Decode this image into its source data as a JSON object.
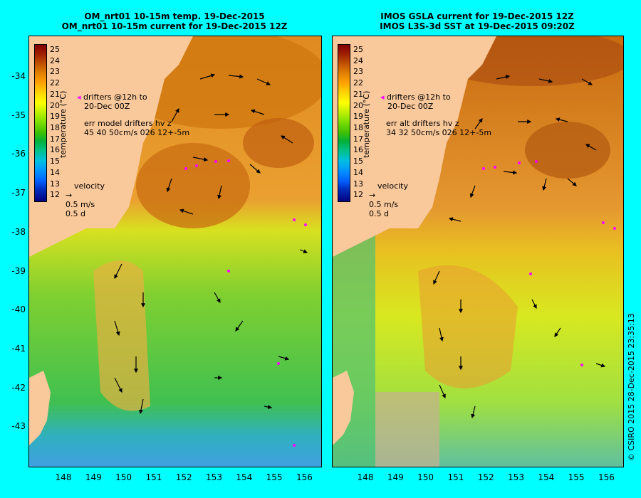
{
  "left_panel": {
    "title_line1": "OM_nrt01 10-15m temp. 19-Dec-2015",
    "title_line2": "OM_nrt01 10-15m current for 19-Dec-2015 12Z",
    "legend": {
      "drifters_line1": "drifters @12h to",
      "drifters_line2": "20-Dec 00Z",
      "err_line1": "err model drifters hv z",
      "err_line2": "45 40 50cm/s 026 12+-5m",
      "velocity_label": "velocity",
      "velocity_scale": "0.5 m/s",
      "velocity_time": "0.5 d"
    }
  },
  "right_panel": {
    "title_line1": "IMOS GSLA current for 19-Dec-2015 12Z",
    "title_line2": "IMOS L3S-3d SST at 19-Dec-2015 09:20Z",
    "legend": {
      "drifters_line1": "drifters @12h to",
      "drifters_line2": "20-Dec 00Z",
      "err_line1": "err alt drifters hv z",
      "err_line2": "34 32 50cm/s 026 12+-5m",
      "velocity_label": "velocity",
      "velocity_scale": "0.5 m/s",
      "velocity_time": "0.5 d"
    }
  },
  "colorbar": {
    "label": "temperature (°C)",
    "ticks": [
      "25",
      "24",
      "23",
      "22",
      "21",
      "20",
      "19",
      "18",
      "17",
      "16",
      "15",
      "14",
      "13",
      "12"
    ]
  },
  "lat_ticks": [
    "-34",
    "-35",
    "-36",
    "-37",
    "-38",
    "-39",
    "-40",
    "-41",
    "-42",
    "-43"
  ],
  "lon_ticks": [
    "148",
    "149",
    "150",
    "151",
    "152",
    "153",
    "154",
    "155",
    "156"
  ],
  "copyright": "© CSIRO 2015   28-Dec-2015 23:35:13",
  "colors": {
    "frame_background": "#00ffff",
    "land": "#f9c89b",
    "drifter_marker": "#ff00ff"
  }
}
